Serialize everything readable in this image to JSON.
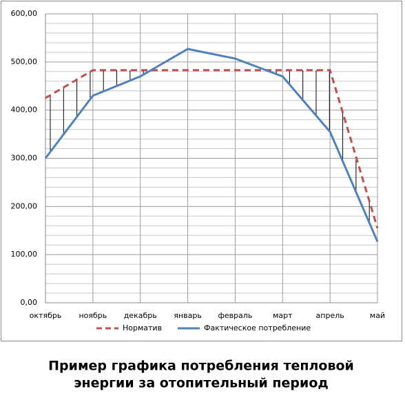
{
  "chart_data": {
    "type": "line",
    "title": [
      "Пример графика потребления тепловой",
      "энергии за отопительный период"
    ],
    "categories": [
      "октябрь",
      "ноябрь",
      "декабрь",
      "январь",
      "февраль",
      "март",
      "апрель",
      "май"
    ],
    "series": [
      {
        "name": "Норматив",
        "color": "#c0504d",
        "dashed": true,
        "values": [
          425,
          483,
          483,
          483,
          483,
          483,
          483,
          155
        ]
      },
      {
        "name": "Фактическое потребление",
        "color": "#4f81bd",
        "dashed": false,
        "values": [
          300,
          430,
          470,
          527,
          507,
          470,
          355,
          127
        ]
      }
    ],
    "ylim": [
      0,
      600
    ],
    "yticks": [
      {
        "value": 0,
        "label": "0,00"
      },
      {
        "value": 100,
        "label": "100,00"
      },
      {
        "value": 200,
        "label": "200,00"
      },
      {
        "value": 300,
        "label": "300,00"
      },
      {
        "value": 400,
        "label": "400,00"
      },
      {
        "value": 500,
        "label": "500,00"
      },
      {
        "value": 600,
        "label": "600,00"
      }
    ],
    "yminorticks": [
      20,
      40,
      60,
      80,
      120,
      140,
      160,
      180,
      220,
      240,
      260,
      280,
      320,
      340,
      360,
      380,
      420,
      440,
      460,
      480,
      520,
      540,
      560,
      580
    ],
    "grid": true,
    "legend": "bottom"
  }
}
